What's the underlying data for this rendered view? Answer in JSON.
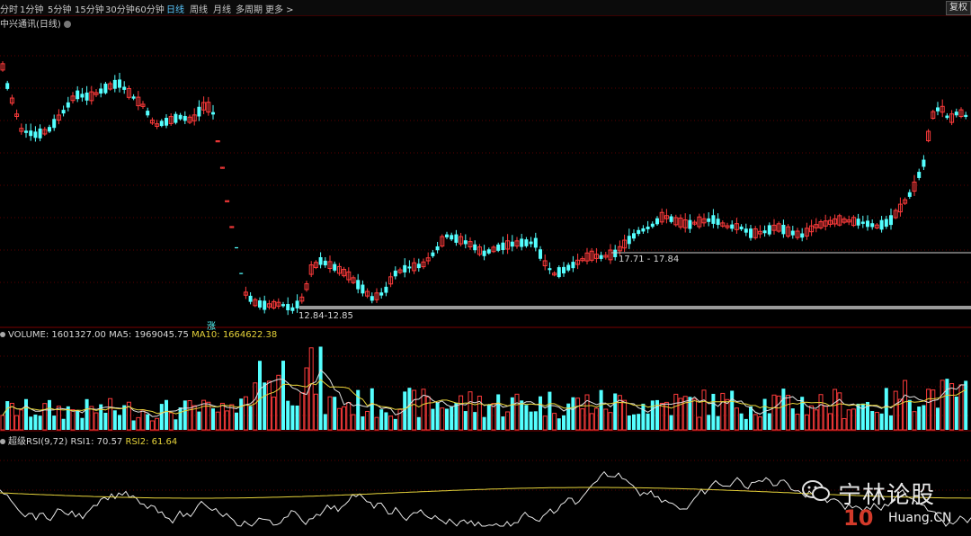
{
  "toolbar": {
    "tabs": [
      "分时",
      "1分钟",
      "5分钟",
      "15分钟",
      "30分钟",
      "60分钟",
      "日线",
      "周线",
      "月线",
      "多周期",
      "更多 >"
    ],
    "active_tab": "日线",
    "fuquan_label": "复权"
  },
  "main_title": "中兴通讯(日线)",
  "price_annotations": {
    "low_range": "12.84-12.85",
    "gap_range": "17.71 - 17.84",
    "marker": "涨"
  },
  "volume_panel": {
    "volume_label": "VOLUME: 1601327.00",
    "ma5_label": "MA5: 1969045.75",
    "ma10_label": "MA10: 1664622.38"
  },
  "rsi_panel": {
    "name_label": "超级RSI(9,72)",
    "rsi1_label": "RSI1: 70.57",
    "rsi2_label": "RSI2: 61.64"
  },
  "watermark": {
    "text": "宁林论股",
    "logo": "10",
    "site": "Huang.CN"
  },
  "colors": {
    "up": "#ff3b3b",
    "down": "#54ffff",
    "ma10": "#e6d33a",
    "grid": "#5a0000",
    "gap_band": "#9a9a9a"
  },
  "chart_data": {
    "type": "candlestick",
    "price_axis_labels": [],
    "gaps": [
      {
        "range": [
          12.84,
          12.85
        ]
      },
      {
        "range": [
          17.71,
          17.84
        ]
      }
    ]
  }
}
